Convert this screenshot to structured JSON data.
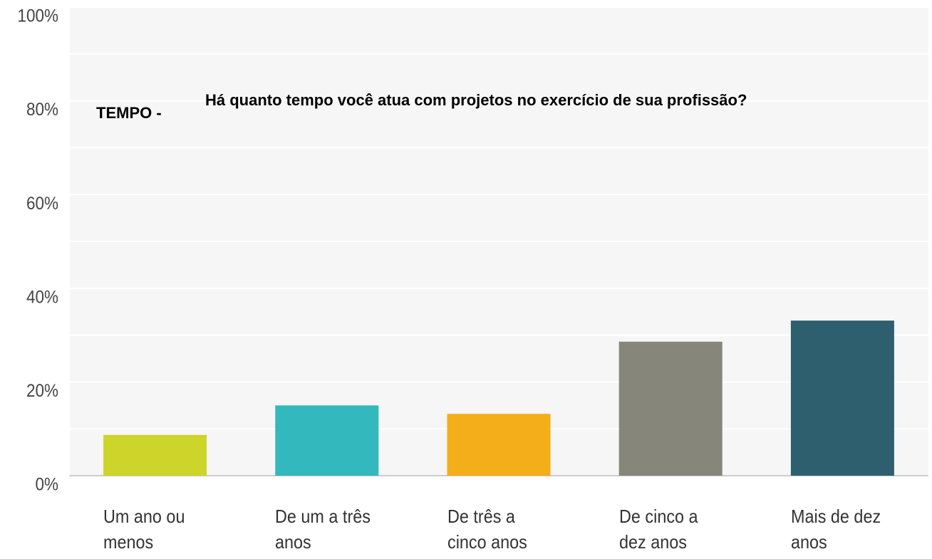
{
  "chart_data": {
    "type": "bar",
    "title_label": "TEMPO -",
    "title": "Há quanto tempo você atua com projetos no exercício de sua profissão?",
    "categories": [
      "Um ano ou menos",
      "De um a três anos",
      "De três a cinco anos",
      "De cinco a dez anos",
      "Mais de dez anos"
    ],
    "values": [
      8.7,
      15.0,
      13.2,
      28.6,
      33.1
    ],
    "colors": [
      "#cdd42a",
      "#33b8bd",
      "#f4ae1a",
      "#86877a",
      "#2d5f6e"
    ],
    "ylim": [
      0,
      100
    ],
    "yticks": [
      {
        "value": 0,
        "label": "0%"
      },
      {
        "value": 20,
        "label": "20%"
      },
      {
        "value": 40,
        "label": "40%"
      },
      {
        "value": 60,
        "label": "60%"
      },
      {
        "value": 80,
        "label": "80%"
      },
      {
        "value": 100,
        "label": "100%"
      }
    ],
    "minor_yticks": [
      10,
      30,
      50,
      70,
      90
    ],
    "grid": true
  }
}
